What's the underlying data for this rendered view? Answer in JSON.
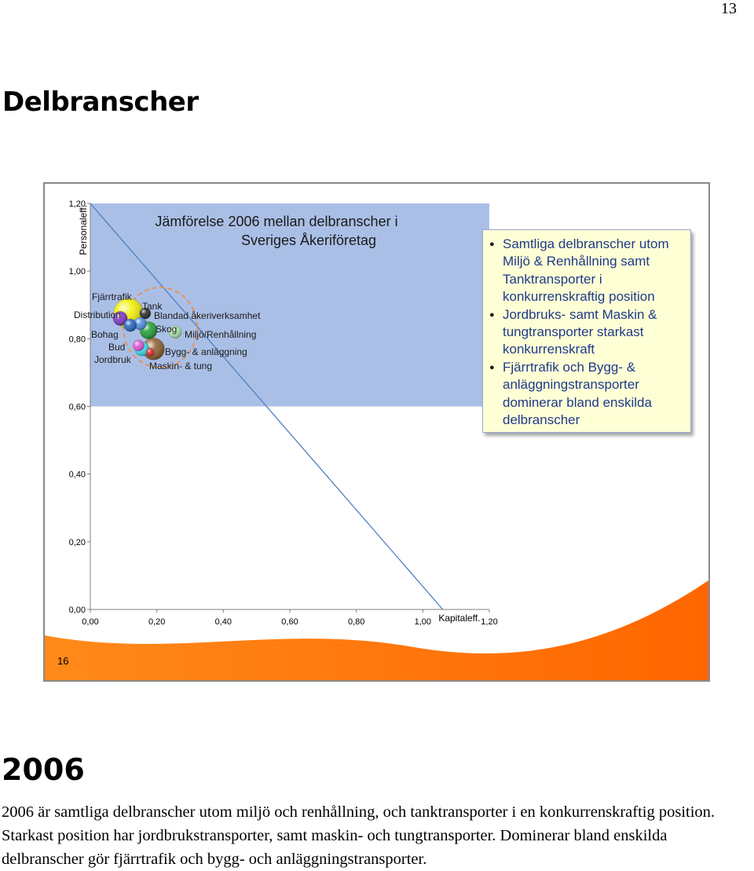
{
  "page_number": "13",
  "title": "Delbranscher",
  "slide": {
    "number": "16",
    "callout_bullets": [
      "Samtliga delbranscher utom Miljö & Renhållning samt Tanktransporter i konkurrenskraftig position",
      "Jordbruks- samt Maskin & tungtransporter starkast konkurrenskraft",
      "Fjärrtrafik och Bygg- & anläggningstransporter dominerar bland enskilda delbranscher"
    ]
  },
  "chart_data": {
    "type": "bubble",
    "title_line1": "Jämförelse 2006 mellan delbranscher i",
    "title_line2": "Sveriges Åkeriföretag",
    "xlabel": "Kapitaleff.",
    "ylabel": "Personaleff.",
    "xlim": [
      0,
      1.2
    ],
    "ylim": [
      0,
      1.2
    ],
    "x_ticks": [
      "0,00",
      "0,20",
      "0,40",
      "0,60",
      "0,80",
      "1,00",
      "1,20"
    ],
    "y_ticks": [
      "0,00",
      "0,20",
      "0,40",
      "0,60",
      "0,80",
      "1,00",
      "1,20"
    ],
    "shaded_region": {
      "x": [
        0,
        1.2
      ],
      "y": [
        0.6,
        1.2
      ],
      "color": "#aabfe6"
    },
    "trend_line": {
      "from": [
        0.0,
        1.2
      ],
      "to": [
        1.06,
        0.0
      ],
      "color": "#4f81bd"
    },
    "points": [
      {
        "label": "Fjärrtrafik",
        "x": 0.115,
        "y": 0.875,
        "size": 19,
        "color": "#f2f000"
      },
      {
        "label": "Tank",
        "x": 0.165,
        "y": 0.875,
        "size": 7,
        "color": "#222222"
      },
      {
        "label": "Distribution",
        "x": 0.09,
        "y": 0.86,
        "size": 9,
        "color": "#7a2fc0"
      },
      {
        "label": "Blandad åkeriverksamhet",
        "x": 0.15,
        "y": 0.845,
        "size": 8,
        "color": "#4a8be0"
      },
      {
        "label": "Bohag",
        "x": 0.12,
        "y": 0.84,
        "size": 8,
        "color": "#1f5fbf"
      },
      {
        "label": "Skog",
        "x": 0.175,
        "y": 0.825,
        "size": 11,
        "color": "#1d9a2e"
      },
      {
        "label": "Miljö/Renhållning",
        "x": 0.255,
        "y": 0.82,
        "size": 8,
        "color": "#a8e6a8"
      },
      {
        "label": "Bud",
        "x": 0.145,
        "y": 0.78,
        "size": 7,
        "color": "#e24fd8"
      },
      {
        "label": "Jordbruk",
        "x": 0.155,
        "y": 0.77,
        "size": 9,
        "color": "#2ee0f0"
      },
      {
        "label": "Bygg- & anläggning",
        "x": 0.19,
        "y": 0.77,
        "size": 14,
        "color": "#8a5a2b"
      },
      {
        "label": "Maskin- & tung",
        "x": 0.18,
        "y": 0.76,
        "size": 5,
        "color": "#e02020"
      }
    ]
  },
  "year_heading": "2006",
  "body_text": "2006 är samtliga delbranscher utom miljö och renhållning, och tanktransporter i en konkurrenskraftig position. Starkast position har jordbrukstransporter, samt maskin- och tungtransporter. Dominerar bland enskilda delbranscher gör fjärrtrafik och bygg- och anläggningstransporter."
}
